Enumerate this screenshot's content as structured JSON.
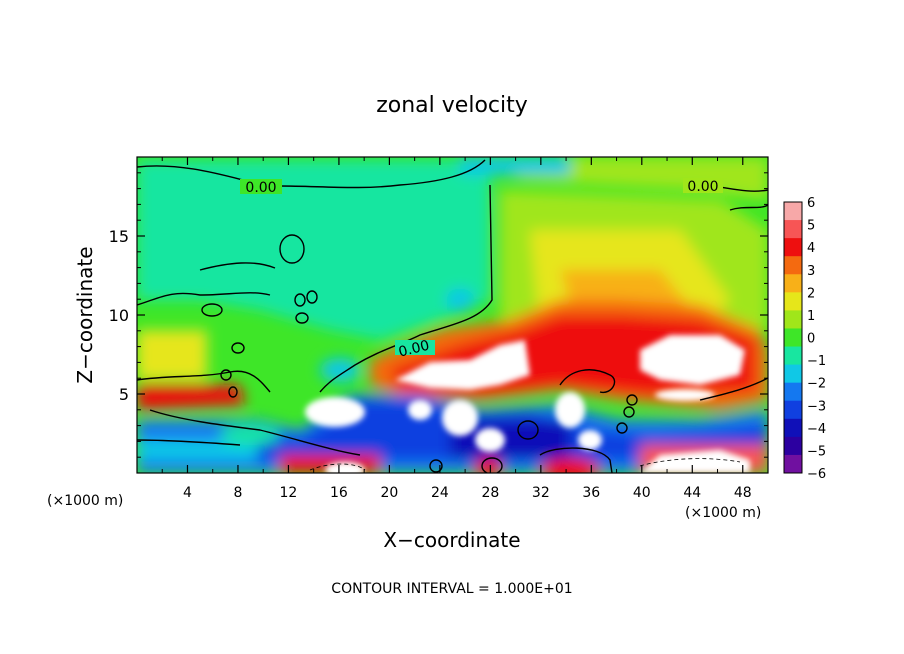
{
  "chart_data": {
    "type": "heatmap",
    "title": "zonal velocity",
    "xlabel": "X−coordinate",
    "ylabel": "Z−coordinate",
    "x_unit_left": "(×1000 m)",
    "x_unit_right": "(×1000 m)",
    "xlim": [
      0,
      50
    ],
    "ylim": [
      0,
      20
    ],
    "x_ticks": [
      4,
      8,
      12,
      16,
      20,
      24,
      28,
      32,
      36,
      40,
      44,
      48
    ],
    "y_ticks": [
      5,
      10,
      15
    ],
    "colorbar": {
      "ticks": [
        "6",
        "5",
        "4",
        "3",
        "2",
        "1",
        "0",
        "−1",
        "−2",
        "−3",
        "−4",
        "−5",
        "−6"
      ],
      "colors": [
        "#f7a8a8",
        "#f75555",
        "#ee0f0f",
        "#f46a10",
        "#f8b018",
        "#e6e61a",
        "#a0e61a",
        "#3ee628",
        "#18e6a0",
        "#10c8e6",
        "#1478f0",
        "#1040e0",
        "#1010b8",
        "#2c00a0",
        "#7010a0"
      ]
    },
    "contour_labels": [
      "0.00",
      "0.00",
      "0.00"
    ],
    "footer": "CONTOUR INTERVAL = 1.000E+01"
  }
}
